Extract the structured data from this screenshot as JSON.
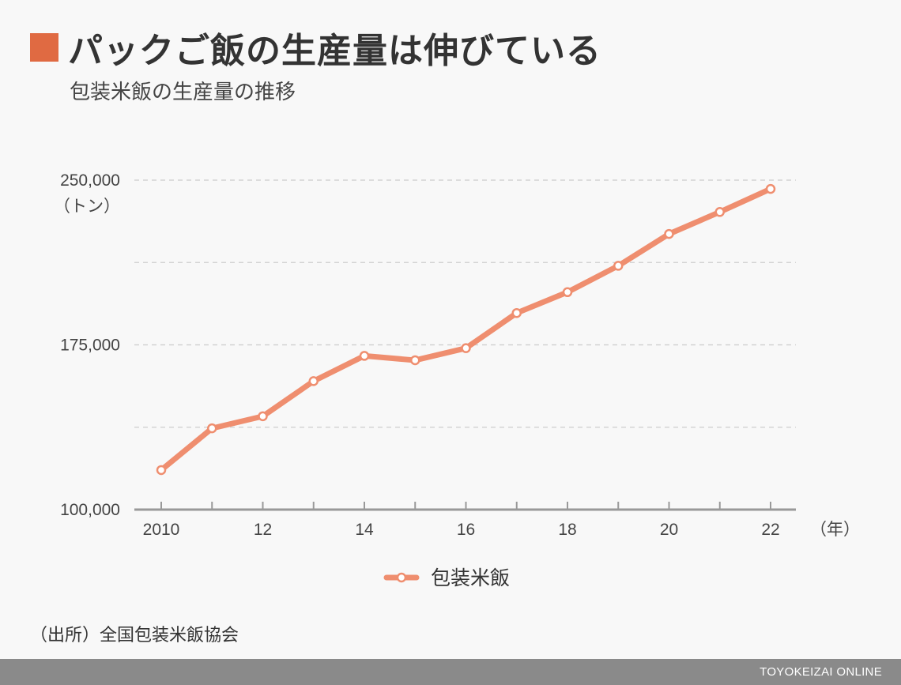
{
  "header": {
    "title": "パックご飯の生産量は伸びている",
    "subtitle": "包装米飯の生産量の推移"
  },
  "colors": {
    "accent": "#e06a42",
    "line": "#ef8e6f",
    "grid": "#cccccc",
    "axis": "#999999",
    "footer_bg": "#8a8a8a"
  },
  "chart_data": {
    "type": "line",
    "x": [
      2010,
      2011,
      2012,
      2013,
      2014,
      2015,
      2016,
      2017,
      2018,
      2019,
      2020,
      2021,
      2022
    ],
    "x_tick_labels": [
      "2010",
      "",
      "12",
      "",
      "14",
      "",
      "16",
      "",
      "18",
      "",
      "20",
      "",
      "22"
    ],
    "series": [
      {
        "name": "包装米飯",
        "values": [
          118000,
          137000,
          142500,
          158500,
          170000,
          168000,
          173500,
          189500,
          199000,
          211000,
          225500,
          235500,
          246000
        ]
      }
    ],
    "ylim": [
      100000,
      250000
    ],
    "y_tick_labels": [
      "100,000",
      "175,000",
      "250,000"
    ],
    "y_tick_values": [
      100000,
      175000,
      250000
    ],
    "y_unit": "（トン）",
    "x_unit": "（年）",
    "gridlines": [
      137500,
      175000,
      212500,
      250000
    ],
    "grid": true,
    "legend_position": "bottom-center"
  },
  "legend": {
    "label": "包装米飯"
  },
  "source": "（出所）全国包装米飯協会",
  "footer": {
    "brand": "TOYOKEIZAI ONLINE"
  }
}
